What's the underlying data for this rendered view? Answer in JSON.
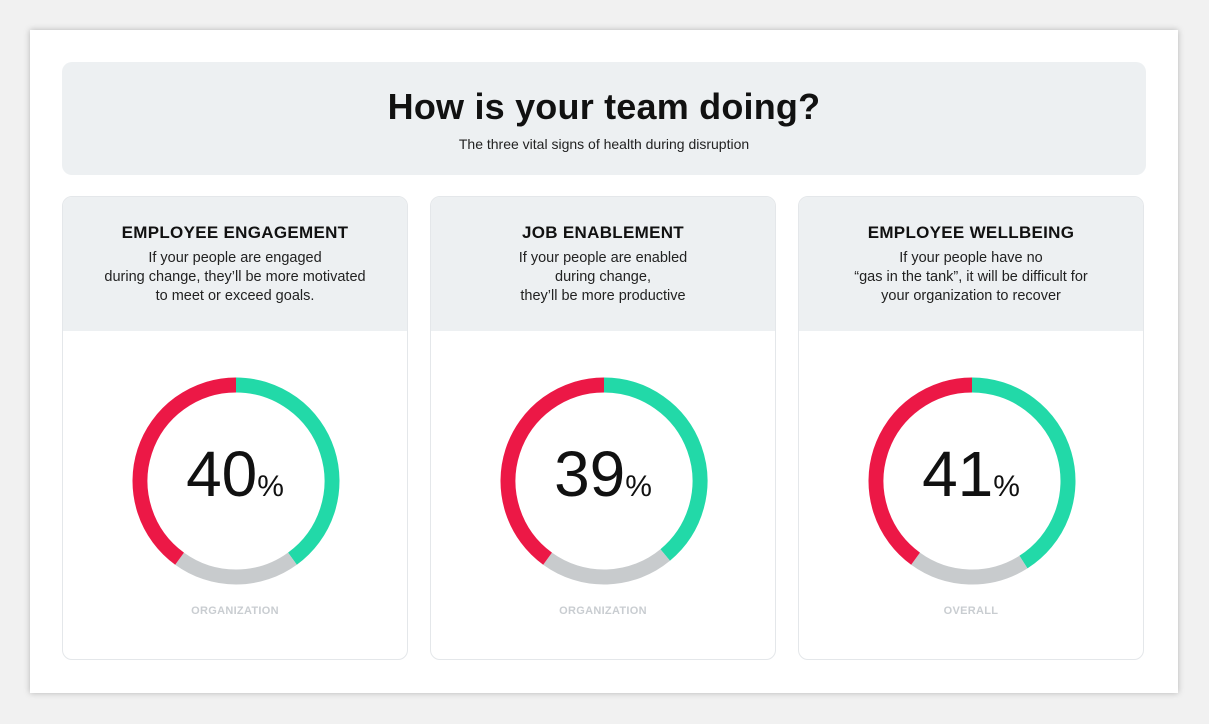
{
  "header": {
    "title": "How is your team doing?",
    "subtitle": "The three vital signs of health during disruption"
  },
  "colors": {
    "positive": "#22d9a8",
    "negative": "#ec1846",
    "neutral": "#c8cbcd"
  },
  "chart_data": [
    {
      "type": "pie",
      "title": "EMPLOYEE ENGAGEMENT",
      "description": [
        "If your people are engaged",
        "during change, they’ll be more motivated",
        "to meet or exceed goals."
      ],
      "value": "40",
      "unit": "%",
      "label": "ORGANIZATION",
      "segments": [
        {
          "color": "positive",
          "value": 40
        },
        {
          "color": "neutral",
          "value": 20
        },
        {
          "color": "negative",
          "value": 40
        }
      ]
    },
    {
      "type": "pie",
      "title": "JOB ENABLEMENT",
      "description": [
        "If your people are enabled",
        "during change,",
        "they’ll be more productive"
      ],
      "value": "39",
      "unit": "%",
      "label": "ORGANIZATION",
      "segments": [
        {
          "color": "positive",
          "value": 39
        },
        {
          "color": "neutral",
          "value": 21
        },
        {
          "color": "negative",
          "value": 40
        }
      ]
    },
    {
      "type": "pie",
      "title": "EMPLOYEE WELLBEING",
      "description": [
        "If your people have no",
        "“gas in the tank”,  it will be difficult for",
        "your organization to recover"
      ],
      "value": "41",
      "unit": "%",
      "label": "OVERALL",
      "segments": [
        {
          "color": "positive",
          "value": 41
        },
        {
          "color": "neutral",
          "value": 19
        },
        {
          "color": "negative",
          "value": 40
        }
      ]
    }
  ]
}
